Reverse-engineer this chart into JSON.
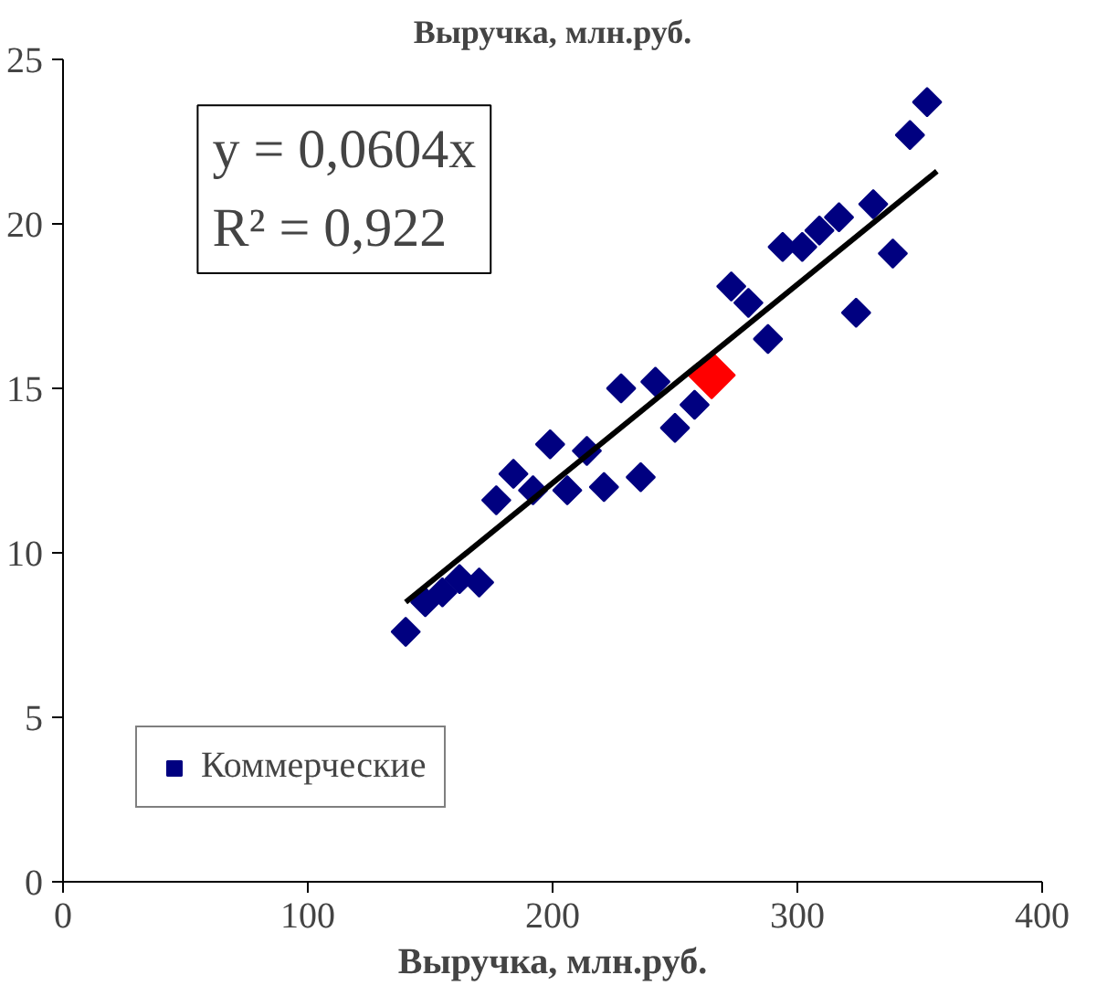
{
  "chart_data": {
    "type": "scatter",
    "title": "Выручка, млн.руб.",
    "xlabel": "Выручка, млн.руб.",
    "annotations": [
      "y = 0,0604x",
      "R² = 0,922"
    ],
    "xlim": [
      0,
      400
    ],
    "xticks": [
      0,
      100,
      200,
      300,
      400
    ],
    "ylim": [
      0,
      25
    ],
    "yticks": [
      0,
      5,
      10,
      15,
      20,
      25
    ],
    "grid": false,
    "legend": "bottom left",
    "marker": "diamond",
    "series": [
      {
        "name": "Коммерческие",
        "color": "#000080",
        "x": [
          140,
          148,
          155,
          162,
          170,
          177,
          184,
          192,
          199,
          206,
          214,
          221,
          228,
          236,
          242,
          250,
          258,
          273,
          280,
          288,
          294,
          302,
          309,
          317,
          324,
          331,
          339,
          346,
          353
        ],
        "values": [
          7.6,
          8.5,
          8.8,
          9.2,
          9.1,
          11.6,
          12.4,
          11.9,
          13.3,
          11.9,
          13.1,
          12.0,
          15.0,
          12.3,
          15.2,
          13.8,
          14.5,
          18.1,
          17.6,
          16.5,
          19.3,
          19.3,
          19.8,
          20.2,
          17.3,
          20.6,
          19.1,
          22.7,
          23.7
        ]
      },
      {
        "color": "#ff0000",
        "x": [
          265
        ],
        "values": [
          15.4
        ]
      },
      {
        "type": "line",
        "marker": "none",
        "color": "#000000",
        "x": [
          140,
          357
        ],
        "values": [
          8.5,
          21.6
        ]
      }
    ]
  }
}
